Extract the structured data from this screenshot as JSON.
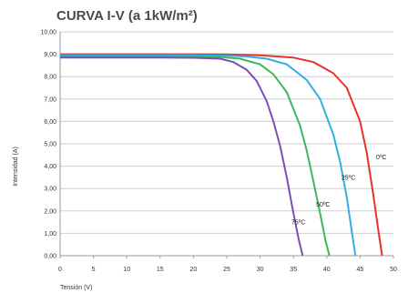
{
  "chart_data": {
    "type": "line",
    "title": "CURVA I-V (a 1kW/m²)",
    "xlabel": "Tensión (V)",
    "ylabel": "Intensidad (A)",
    "xlim": [
      0,
      50
    ],
    "ylim": [
      0,
      10
    ],
    "x_ticks": [
      "0",
      "5",
      "10",
      "15",
      "20",
      "25",
      "30",
      "35",
      "40",
      "45",
      "50"
    ],
    "y_ticks": [
      "0,00",
      "1,00",
      "2,00",
      "3,00",
      "4,00",
      "5,00",
      "6,00",
      "7,00",
      "8,00",
      "9,00",
      "10,00"
    ],
    "grid": "horizontal",
    "series": [
      {
        "name": "0ºC",
        "color": "#e8312f",
        "x": [
          0,
          5,
          10,
          15,
          20,
          25,
          30,
          35,
          38,
          41,
          43,
          45,
          46,
          47,
          47.8,
          48.3
        ],
        "y": [
          9.0,
          9.0,
          9.0,
          9.0,
          9.0,
          8.99,
          8.95,
          8.85,
          8.65,
          8.15,
          7.5,
          6.0,
          4.6,
          2.7,
          1.0,
          0
        ]
      },
      {
        "name": "25ºC",
        "color": "#2fb0e3",
        "x": [
          0,
          5,
          10,
          15,
          20,
          25,
          28,
          31,
          34,
          37,
          39,
          41,
          42,
          43,
          43.8,
          44.3
        ],
        "y": [
          8.95,
          8.95,
          8.95,
          8.95,
          8.95,
          8.94,
          8.9,
          8.8,
          8.55,
          7.85,
          7.0,
          5.4,
          4.2,
          2.6,
          1.0,
          0
        ]
      },
      {
        "name": "50ºC",
        "color": "#3bb85a",
        "x": [
          0,
          5,
          10,
          15,
          20,
          24,
          27,
          30,
          32,
          34,
          36,
          37,
          38,
          39,
          39.8,
          40.4
        ],
        "y": [
          8.9,
          8.9,
          8.9,
          8.9,
          8.9,
          8.88,
          8.8,
          8.55,
          8.1,
          7.3,
          5.8,
          4.7,
          3.3,
          1.9,
          0.7,
          0
        ]
      },
      {
        "name": "75ºC",
        "color": "#7b4fb8",
        "x": [
          0,
          5,
          10,
          15,
          20,
          24,
          26,
          28,
          29.5,
          31,
          32,
          33,
          34,
          35,
          35.8,
          36.4
        ],
        "y": [
          8.85,
          8.85,
          8.85,
          8.85,
          8.84,
          8.8,
          8.65,
          8.3,
          7.8,
          6.9,
          6.0,
          4.9,
          3.5,
          1.9,
          0.7,
          0
        ]
      }
    ],
    "curve_labels": [
      {
        "text": "0ºC",
        "x": 47.4,
        "y": 4.3
      },
      {
        "text": "25ºC",
        "x": 42.2,
        "y": 3.4
      },
      {
        "text": "50ºC",
        "x": 38.4,
        "y": 2.2
      },
      {
        "text": "75ºC",
        "x": 34.7,
        "y": 1.4
      }
    ]
  }
}
